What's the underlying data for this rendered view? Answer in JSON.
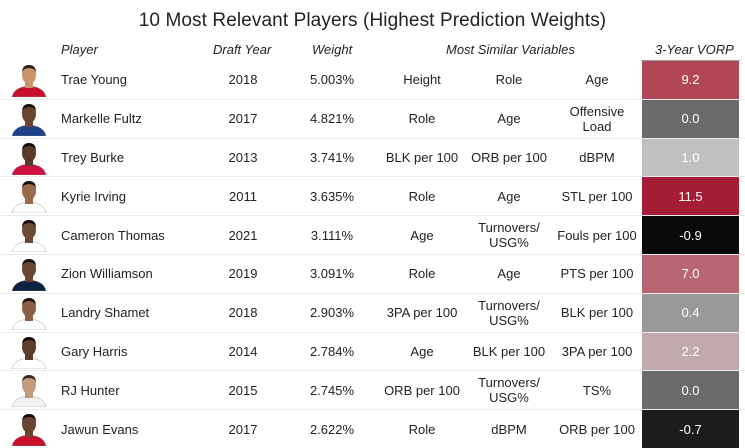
{
  "title": "10 Most Relevant Players (Highest Prediction Weights)",
  "headers": {
    "player": "Player",
    "draft_year": "Draft Year",
    "weight": "Weight",
    "similar": "Most Similar Variables",
    "vorp": "3-Year VORP"
  },
  "rows": [
    {
      "player": "Trae Young",
      "year": "2018",
      "weight": "5.003%",
      "v1": "Height",
      "v2": "Role",
      "v3": "Age",
      "vorp": "9.2",
      "vorp_color": "#b04656",
      "avatar": {
        "skin": "#c8946c",
        "hair": "#2b1d14",
        "jersey": "#c8102e"
      }
    },
    {
      "player": "Markelle Fultz",
      "year": "2017",
      "weight": "4.821%",
      "v1": "Role",
      "v2": "Age",
      "v3": "Offensive Load",
      "vorp": "0.0",
      "vorp_color": "#6b6b6b",
      "avatar": {
        "skin": "#6b4530",
        "hair": "#1a120d",
        "jersey": "#1d428a"
      }
    },
    {
      "player": "Trey Burke",
      "year": "2013",
      "weight": "3.741%",
      "v1": "BLK per 100",
      "v2": "ORB per 100",
      "v3": "dBPM",
      "vorp": "1.0",
      "vorp_color": "#c2bfc0",
      "avatar": {
        "skin": "#5a3a28",
        "hair": "#150e0a",
        "jersey": "#ce1141"
      }
    },
    {
      "player": "Kyrie Irving",
      "year": "2011",
      "weight": "3.635%",
      "v1": "Role",
      "v2": "Age",
      "v3": "STL per 100",
      "vorp": "11.5",
      "vorp_color": "#a51d35",
      "avatar": {
        "skin": "#9a6a4c",
        "hair": "#1a120d",
        "jersey": "#ffffff"
      }
    },
    {
      "player": "Cameron Thomas",
      "year": "2021",
      "weight": "3.111%",
      "v1": "Age",
      "v2": "Turnovers/\nUSG%",
      "v3": "Fouls per 100",
      "vorp": "-0.9",
      "vorp_color": "#0a0a0a",
      "avatar": {
        "skin": "#6d4a34",
        "hair": "#130c08",
        "jersey": "#ffffff"
      }
    },
    {
      "player": "Zion Williamson",
      "year": "2019",
      "weight": "3.091%",
      "v1": "Role",
      "v2": "Age",
      "v3": "PTS per 100",
      "vorp": "7.0",
      "vorp_color": "#b76771",
      "avatar": {
        "skin": "#6a4531",
        "hair": "#1a120d",
        "jersey": "#0c2340"
      }
    },
    {
      "player": "Landry Shamet",
      "year": "2018",
      "weight": "2.903%",
      "v1": "3PA per 100",
      "v2": "Turnovers/\nUSG%",
      "v3": "BLK per 100",
      "vorp": "0.4",
      "vorp_color": "#9a9898",
      "avatar": {
        "skin": "#8a5f44",
        "hair": "#1a120d",
        "jersey": "#ffffff"
      }
    },
    {
      "player": "Gary Harris",
      "year": "2014",
      "weight": "2.784%",
      "v1": "Age",
      "v2": "BLK per 100",
      "v3": "3PA per 100",
      "vorp": "2.2",
      "vorp_color": "#c1a9ac",
      "avatar": {
        "skin": "#5e3d2a",
        "hair": "#130c08",
        "jersey": "#ffffff"
      }
    },
    {
      "player": "RJ Hunter",
      "year": "2015",
      "weight": "2.745%",
      "v1": "ORB per 100",
      "v2": "Turnovers/\nUSG%",
      "v3": "TS%",
      "vorp": "0.0",
      "vorp_color": "#6b6b6b",
      "avatar": {
        "skin": "#c29a7c",
        "hair": "#3a2a20",
        "jersey": "#f2f2f2"
      }
    },
    {
      "player": "Jawun Evans",
      "year": "2017",
      "weight": "2.622%",
      "v1": "Role",
      "v2": "dBPM",
      "v3": "ORB per 100",
      "vorp": "-0.7",
      "vorp_color": "#1c1c1c",
      "avatar": {
        "skin": "#6b4530",
        "hair": "#130c08",
        "jersey": "#c8102e"
      }
    }
  ]
}
